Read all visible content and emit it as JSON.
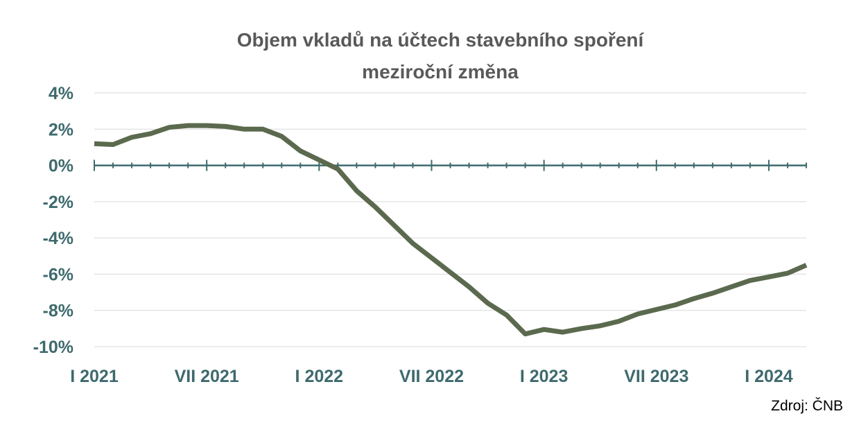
{
  "chart_data": {
    "type": "line",
    "title": "Objem vkladů na účtech stavebního spoření",
    "subtitle": "meziroční změna",
    "xlabel": "",
    "ylabel": "",
    "ylim": [
      -10,
      4
    ],
    "y_ticks": [
      4,
      2,
      0,
      -2,
      -4,
      -6,
      -8,
      -10
    ],
    "y_tick_labels": [
      "4%",
      "2%",
      "0%",
      "-2%",
      "-4%",
      "-6%",
      "-8%",
      "-10%"
    ],
    "x_tick_labels": [
      "I 2021",
      "VII 2021",
      "I 2022",
      "VII 2022",
      "I 2023",
      "VII 2023",
      "I 2024"
    ],
    "grid": "horizontal",
    "legend": "none",
    "color": "#5b6a4e",
    "series": [
      {
        "x": [
          "2021-01",
          "2021-02",
          "2021-03",
          "2021-04",
          "2021-05",
          "2021-06",
          "2021-07",
          "2021-08",
          "2021-09",
          "2021-10",
          "2021-11",
          "2021-12",
          "2022-01",
          "2022-02",
          "2022-03",
          "2022-04",
          "2022-05",
          "2022-06",
          "2022-07",
          "2022-08",
          "2022-09",
          "2022-10",
          "2022-11",
          "2022-12",
          "2023-01",
          "2023-02",
          "2023-03",
          "2023-04",
          "2023-05",
          "2023-06",
          "2023-07",
          "2023-08",
          "2023-09",
          "2023-10",
          "2023-11",
          "2023-12",
          "2024-01",
          "2024-02",
          "2024-03"
        ],
        "values": [
          1.2,
          1.15,
          1.55,
          1.75,
          2.1,
          2.2,
          2.2,
          2.15,
          2.0,
          2.0,
          1.6,
          0.8,
          0.3,
          -0.2,
          -1.4,
          -2.3,
          -3.3,
          -4.3,
          -5.1,
          -5.9,
          -6.7,
          -7.6,
          -8.25,
          -9.3,
          -9.05,
          -9.2,
          -9.0,
          -8.85,
          -8.6,
          -8.2,
          -7.95,
          -7.7,
          -7.35,
          -7.05,
          -6.7,
          -6.35,
          -6.15,
          -5.95,
          -5.5
        ]
      }
    ]
  },
  "source": "Zdroj: ČNB"
}
